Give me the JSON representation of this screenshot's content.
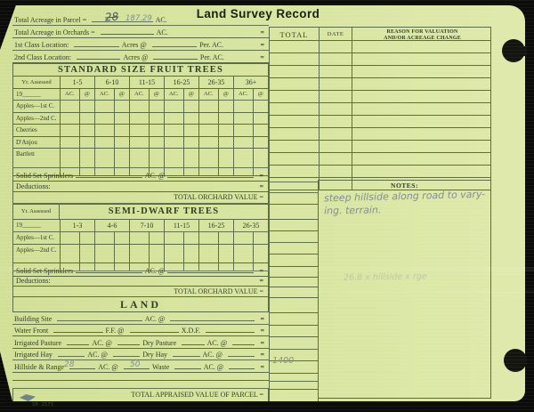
{
  "colors": {
    "card_bg": "#d8e6a0",
    "line": "#5c6d45",
    "ink": "#2e3c25",
    "pencil": "#828d96",
    "pen": "#46525f"
  },
  "title": "Land Survey Record",
  "top_rows": {
    "parcel": {
      "label": "Total Acreage in Parcel =",
      "pen_value": "28",
      "pencil_value": "187.29",
      "unit": "AC."
    },
    "orchards": {
      "label": "Total Acreage in Orchards =",
      "unit": "AC.",
      "equals": "="
    },
    "first_class": {
      "label": "1st Class Location:",
      "acres_at": "Acres @",
      "per_ac": "Per. AC.",
      "equals": "="
    },
    "second_class": {
      "label": "2nd Class Location:",
      "acres_at": "Acres @",
      "per_ac": "Per. AC.",
      "equals": "="
    }
  },
  "right_panel": {
    "total_header": "TOTAL",
    "date_header": "DATE",
    "reason_header_line1": "REASON FOR VALUATION",
    "reason_header_line2": "AND/OR ACREAGE CHANGE",
    "notes_label": "NOTES:",
    "notes_line1": "steep hillside along road to vary-",
    "notes_line2": "ing. terrain.",
    "faint_note": "26.8 x hillside x rge",
    "hillside_total_value": "1400"
  },
  "standard_table": {
    "title": "STANDARD SIZE FRUIT TREES",
    "yr_assessed_label": "Yr. Assessed",
    "year_prefix": "19______",
    "age_columns": [
      "1-5",
      "6-10",
      "11-15",
      "16-25",
      "26-35",
      "36+"
    ],
    "ac_label": "AC.",
    "at_label": "@",
    "rows": [
      "Apples—1st C.",
      "Apples—2nd C.",
      "Cherries",
      "D'Anjou",
      "Bartlett"
    ]
  },
  "semi_table": {
    "title": "SEMI-DWARF TREES",
    "yr_assessed_label": "Yr. Assessed",
    "year_prefix": "19______",
    "age_columns": [
      "1-3",
      "4-6",
      "7-10",
      "11-15",
      "16-25",
      "26-35"
    ],
    "rows": [
      "Apples—1st C.",
      "Apples—2nd C."
    ]
  },
  "orchard_footer": {
    "sprinklers_label": "Solid Set Sprinklers",
    "ac_at": "AC. @",
    "equals": "=",
    "deductions_label": "Deductions:",
    "total_label": "TOTAL ORCHARD VALUE ="
  },
  "land": {
    "title": "LAND",
    "building": {
      "label": "Building Site",
      "ac_at": "AC. @",
      "equals": "="
    },
    "water": {
      "label": "Water Front",
      "ff_at": "F.F. @",
      "xdf": "X.D.F.",
      "equals": "="
    },
    "pasture": {
      "label": "Irrigated Pasture",
      "ac_at1": "AC. @",
      "label2": "Dry Pasture",
      "ac_at2": "AC. @",
      "equals": "="
    },
    "hay": {
      "label": "Irrigated Hay",
      "ac_at1": "AC. @",
      "label2": "Dry Hay",
      "ac_at2": "AC. @",
      "equals": "="
    },
    "hillside": {
      "label": "Hillside & Range",
      "hw_acres": "28",
      "ac_at1": "AC. @",
      "hw_rate": "50",
      "label2": "Waste",
      "ac_at2": "AC. @",
      "equals": "="
    },
    "total_label": "TOTAL APPRAISED VALUE OF PARCEL ="
  },
  "footer": {
    "form_number": "SM-1575"
  }
}
